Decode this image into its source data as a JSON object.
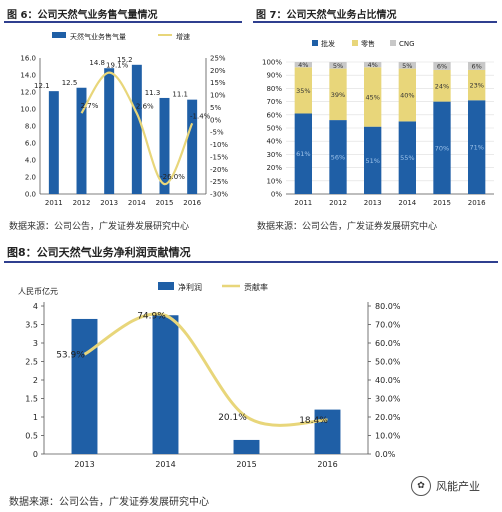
{
  "fig6": {
    "title": "图 6：公司天然气业务售气量情况",
    "source": "数据来源：公司公告，广发证券发展研究中心"
  },
  "fig7": {
    "title": "图 7：公司天然气业务占比情况",
    "source": "数据来源：公司公告，广发证券发展研究中心"
  },
  "fig8": {
    "title": "图8：公司天然气业务净利润贡献情况",
    "source": "数据来源：公司公告，广发证券发展研究中心"
  },
  "watermark": "风能产业",
  "colors": {
    "blue": "#1f5fa6",
    "yellow": "#e8d67a",
    "gray": "#c8c8c8"
  },
  "chart_data": [
    {
      "id": "fig6",
      "type": "bar",
      "categories": [
        "2011",
        "2012",
        "2013",
        "2014",
        "2015",
        "2016"
      ],
      "series": [
        {
          "name": "天然气业务售气量",
          "kind": "bar",
          "axis": "left",
          "values": [
            12.1,
            12.5,
            14.8,
            15.2,
            11.3,
            11.1
          ],
          "labels": [
            "12.1",
            "12.5",
            "14.8",
            "15.2",
            "11.3",
            "11.1"
          ]
        },
        {
          "name": "增速",
          "kind": "line",
          "axis": "right",
          "values": [
            null,
            2.7,
            19.1,
            2.6,
            -26.0,
            -1.4
          ],
          "labels": [
            "",
            "2.7%",
            "19.1%",
            "2.6%",
            "-26.0%",
            "-1.4%"
          ]
        }
      ],
      "ylim": [
        0,
        16
      ],
      "yticks": [
        "0.0",
        "2.0",
        "4.0",
        "6.0",
        "8.0",
        "10.0",
        "12.0",
        "14.0",
        "16.0"
      ],
      "y2lim": [
        -30,
        25
      ],
      "y2ticks": [
        "-30%",
        "-25%",
        "-20%",
        "-15%",
        "-10%",
        "-5%",
        "0%",
        "5%",
        "10%",
        "15%",
        "20%",
        "25%"
      ],
      "legend_position": "top"
    },
    {
      "id": "fig7",
      "type": "bar",
      "stacked": true,
      "categories": [
        "2011",
        "2012",
        "2013",
        "2014",
        "2015",
        "2016"
      ],
      "series": [
        {
          "name": "批发",
          "values": [
            61,
            56,
            51,
            55,
            70,
            71
          ],
          "labels": [
            "61%",
            "56%",
            "51%",
            "55%",
            "70%",
            "71%"
          ]
        },
        {
          "name": "零售",
          "values": [
            35,
            39,
            45,
            40,
            24,
            23
          ],
          "labels": [
            "35%",
            "39%",
            "45%",
            "40%",
            "24%",
            "23%"
          ]
        },
        {
          "name": "CNG",
          "values": [
            4,
            5,
            4,
            5,
            6,
            6
          ],
          "labels": [
            "4%",
            "5%",
            "4%",
            "5%",
            "6%",
            "6%"
          ]
        }
      ],
      "ylim": [
        0,
        100
      ],
      "yticks": [
        "0%",
        "10%",
        "20%",
        "30%",
        "40%",
        "50%",
        "60%",
        "70%",
        "80%",
        "90%",
        "100%"
      ],
      "legend_position": "top"
    },
    {
      "id": "fig8",
      "type": "bar",
      "categories": [
        "2013",
        "2014",
        "2015",
        "2016"
      ],
      "ylabel": "人民币亿元",
      "series": [
        {
          "name": "净利润",
          "kind": "bar",
          "axis": "left",
          "values": [
            3.65,
            3.75,
            0.38,
            1.2
          ]
        },
        {
          "name": "贡献率",
          "kind": "line",
          "axis": "right",
          "values": [
            53.9,
            74.9,
            20.1,
            18.4
          ],
          "labels": [
            "53.9%",
            "74.9%",
            "20.1%",
            "18.4%"
          ]
        }
      ],
      "ylim": [
        0,
        4
      ],
      "yticks": [
        "0",
        "0.5",
        "1",
        "1.5",
        "2",
        "2.5",
        "3",
        "3.5",
        "4"
      ],
      "y2lim": [
        0,
        80
      ],
      "y2ticks": [
        "0.0%",
        "10.0%",
        "20.0%",
        "30.0%",
        "40.0%",
        "50.0%",
        "60.0%",
        "70.0%",
        "80.0%"
      ],
      "legend_position": "top"
    }
  ]
}
